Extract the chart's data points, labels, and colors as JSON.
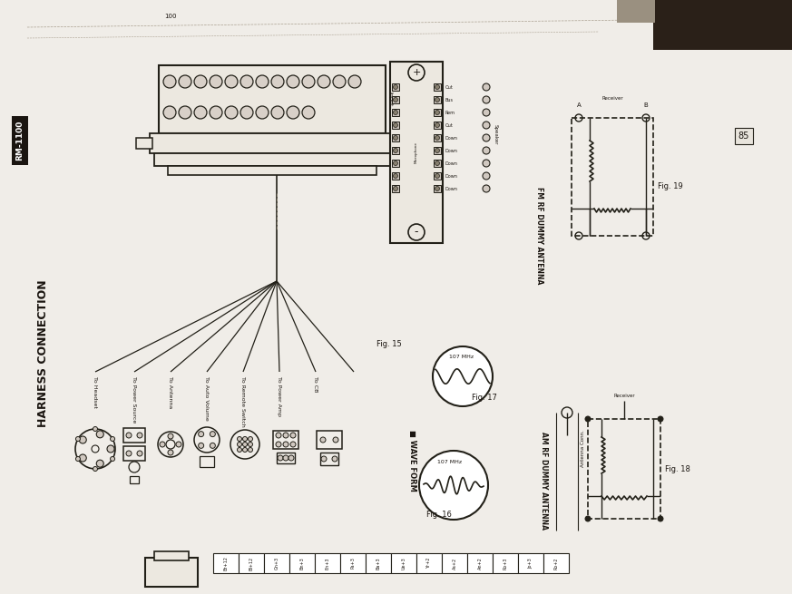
{
  "bg_color": "#f0ede8",
  "paper_color": "#f5f2ee",
  "dark_color": "#1a1510",
  "line_color": "#222018",
  "gray_color": "#888070",
  "title": "HARNESS CONNECTION",
  "label_rm": "RM-1100",
  "connectors": [
    "To Headset",
    "To Power Source",
    "To Antenna",
    "To Auto Volume",
    "To Remote Switch",
    "To Power Amp",
    "To CB"
  ],
  "fig15": "Fig. 15",
  "fig16": "Fig. 16",
  "fig17": "Fig. 17",
  "fig18": "Fig. 18",
  "fig19": "Fig. 19",
  "wave_label": "107 MHz",
  "section_am": "AM RF DUMMY ANTENNA",
  "section_fm": "FM RF DUMMY ANTENNA",
  "wave_form_label": "WAVE FORM",
  "page_num": "85",
  "top_num": "100"
}
